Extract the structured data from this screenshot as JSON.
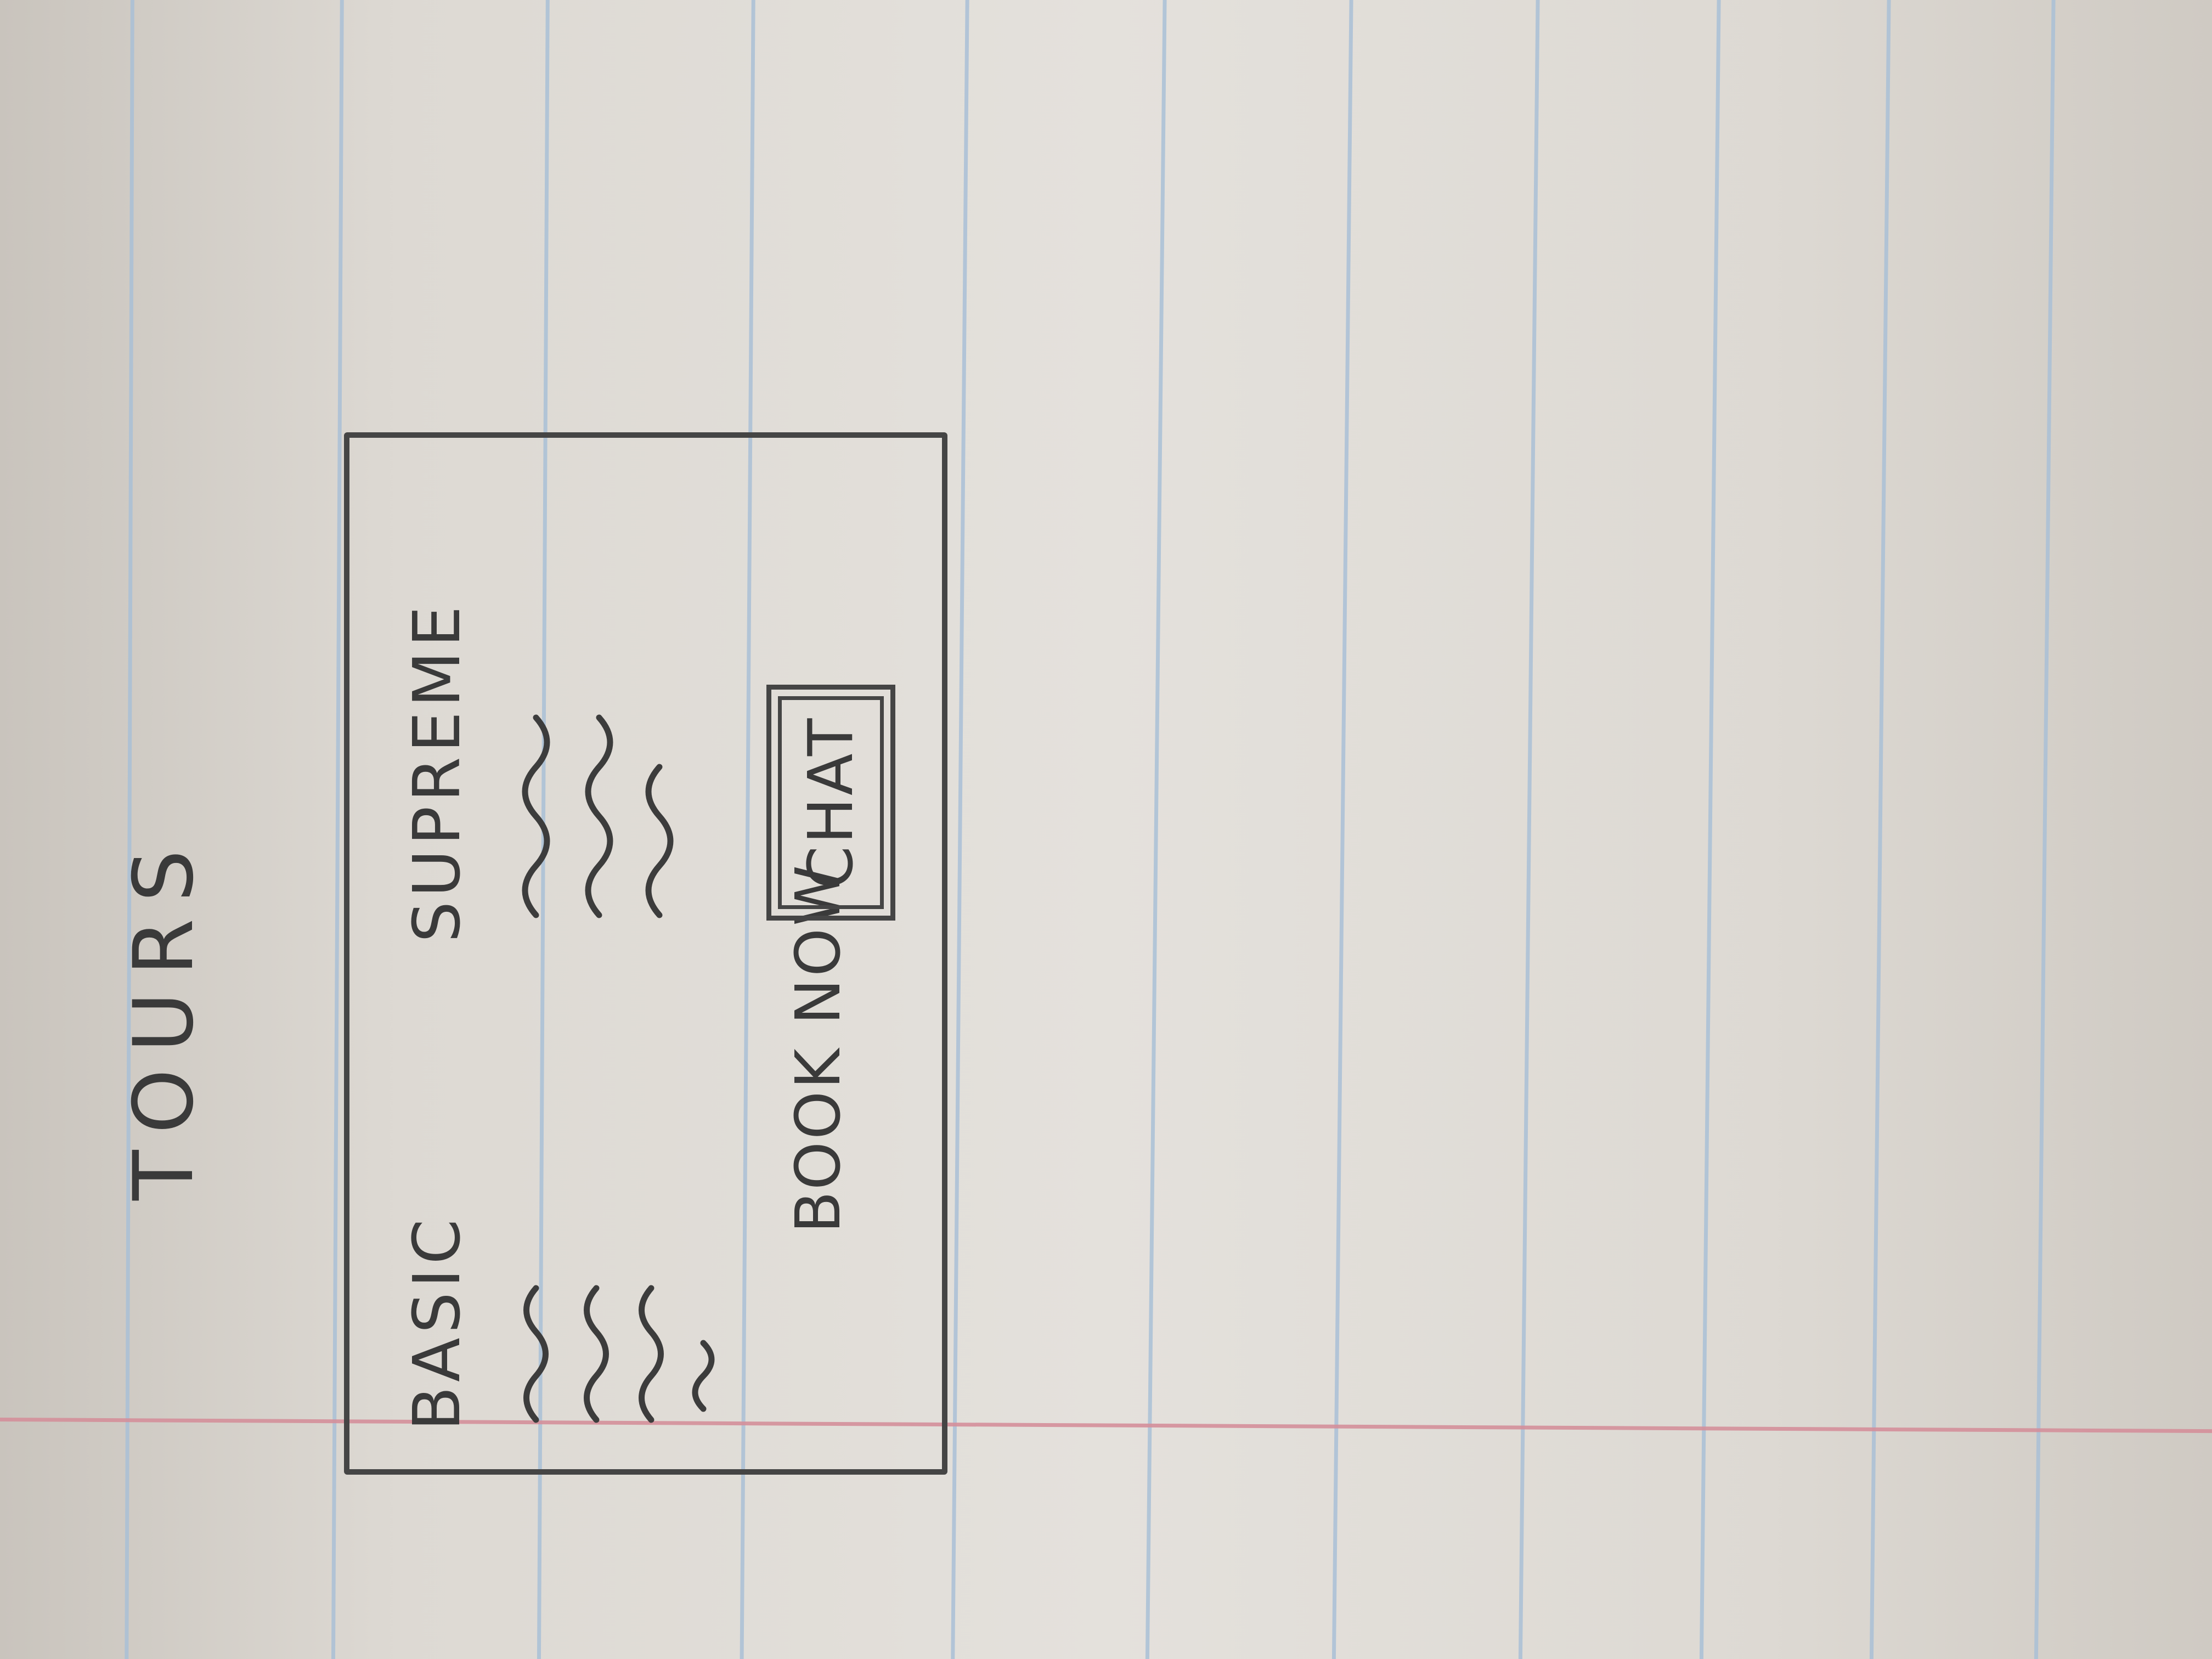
{
  "page": {
    "heading": "TOURS"
  },
  "tiers": [
    {
      "label": "BASIC"
    },
    {
      "label": "SUPREME"
    }
  ],
  "actions": {
    "book_now": "BOOK NOW",
    "chat": "CHAT"
  }
}
